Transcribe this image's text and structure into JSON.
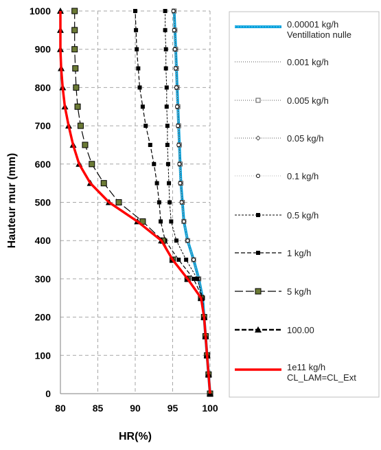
{
  "chart_data": {
    "type": "line",
    "xlabel": "HR(%)",
    "ylabel": "Hauteur mur (mm)",
    "xlim": [
      80,
      100
    ],
    "ylim": [
      0,
      1000
    ],
    "x_ticks": [
      "80",
      "85",
      "90",
      "95",
      "100"
    ],
    "y_ticks": [
      "0",
      "100",
      "200",
      "300",
      "400",
      "500",
      "600",
      "700",
      "800",
      "900",
      "1000"
    ],
    "grid": true,
    "legend_position": "right",
    "series": [
      {
        "name": "0.00001 kg/h",
        "name_line2": "Ventillation nulle",
        "color": "#00a0dc",
        "style": "solid-thick",
        "x": [
          100,
          99.8,
          99.6,
          99.4,
          99.2,
          99.0,
          98.5,
          97.8,
          97.0,
          96.5,
          96.3,
          96.1,
          96.0,
          95.9,
          95.8,
          95.7,
          95.6,
          95.5,
          95.4,
          95.3,
          95.2
        ],
        "y": [
          0,
          50,
          100,
          150,
          200,
          250,
          300,
          350,
          400,
          450,
          500,
          550,
          600,
          650,
          700,
          750,
          800,
          850,
          900,
          950,
          1000
        ]
      },
      {
        "name": "0.001 kg/h",
        "color": "#555555",
        "style": "dotted",
        "x": [
          100,
          99.8,
          99.6,
          99.4,
          99.2,
          99.0,
          98.5,
          97.8,
          97.0,
          96.5,
          96.3,
          96.1,
          96.0,
          95.9,
          95.8,
          95.7,
          95.6,
          95.5,
          95.4,
          95.3,
          95.2
        ],
        "y": [
          0,
          50,
          100,
          150,
          200,
          250,
          300,
          350,
          400,
          450,
          500,
          550,
          600,
          650,
          700,
          750,
          800,
          850,
          900,
          950,
          1000
        ]
      },
      {
        "name": "0.005 kg/h",
        "color": "#555555",
        "style": "dotted-square-open",
        "x": [
          100,
          99.8,
          99.6,
          99.4,
          99.2,
          99.0,
          98.5,
          97.8,
          97.0,
          96.5,
          96.3,
          96.1,
          96.0,
          95.9,
          95.8,
          95.7,
          95.6,
          95.5,
          95.4,
          95.3,
          95.2
        ],
        "y": [
          0,
          50,
          100,
          150,
          200,
          250,
          300,
          350,
          400,
          450,
          500,
          550,
          600,
          650,
          700,
          750,
          800,
          850,
          900,
          950,
          1000
        ]
      },
      {
        "name": "0.05 kg/h",
        "color": "#555555",
        "style": "dotted-diamond",
        "x": [
          100,
          99.8,
          99.6,
          99.4,
          99.2,
          99.0,
          98.5,
          97.8,
          97.0,
          96.5,
          96.3,
          96.1,
          96.0,
          95.9,
          95.8,
          95.7,
          95.6,
          95.5,
          95.4,
          95.3,
          95.2
        ],
        "y": [
          0,
          50,
          100,
          150,
          200,
          250,
          300,
          350,
          400,
          450,
          500,
          550,
          600,
          650,
          700,
          750,
          800,
          850,
          900,
          950,
          1000
        ]
      },
      {
        "name": "0.1 kg/h",
        "color": "#666666",
        "style": "dotted-circle-open",
        "x": [
          100,
          99.8,
          99.6,
          99.4,
          99.2,
          99.0,
          98.5,
          97.8,
          97.0,
          96.5,
          96.2,
          96.0,
          95.9,
          95.8,
          95.7,
          95.6,
          95.5,
          95.4,
          95.3,
          95.2,
          95.1
        ],
        "y": [
          0,
          50,
          100,
          150,
          200,
          250,
          300,
          350,
          400,
          450,
          500,
          550,
          600,
          650,
          700,
          750,
          800,
          850,
          900,
          950,
          1000
        ]
      },
      {
        "name": "0.5 kg/h",
        "color": "#000000",
        "style": "fine-dash-square",
        "x": [
          100,
          99.8,
          99.6,
          99.4,
          99.2,
          99.0,
          98.3,
          96.8,
          95.5,
          94.8,
          94.6,
          94.5,
          94.4,
          94.3,
          94.3,
          94.2,
          94.2,
          94.1,
          94.1,
          94.0,
          94.0
        ],
        "y": [
          0,
          50,
          100,
          150,
          200,
          250,
          300,
          350,
          400,
          450,
          500,
          550,
          600,
          650,
          700,
          750,
          800,
          850,
          900,
          950,
          1000
        ]
      },
      {
        "name": "1 kg/h",
        "color": "#000000",
        "style": "dash-square",
        "x": [
          100,
          99.8,
          99.6,
          99.4,
          99.2,
          99.0,
          97.8,
          95.8,
          94.0,
          93.4,
          93.2,
          92.9,
          92.5,
          92.0,
          91.4,
          91.0,
          90.6,
          90.4,
          90.2,
          90.1,
          90.0
        ],
        "y": [
          0,
          50,
          100,
          150,
          200,
          250,
          300,
          350,
          400,
          450,
          500,
          550,
          600,
          650,
          700,
          750,
          800,
          850,
          900,
          950,
          1000
        ]
      },
      {
        "name": "5  kg/h",
        "color": "#000000",
        "style": "longdash-square-green",
        "x": [
          100,
          99.8,
          99.6,
          99.4,
          99.2,
          98.8,
          97.0,
          95.0,
          93.7,
          91.0,
          87.8,
          85.8,
          84.2,
          83.3,
          82.7,
          82.3,
          82.1,
          82.0,
          81.9,
          81.9,
          81.9
        ],
        "y": [
          0,
          50,
          100,
          150,
          200,
          250,
          300,
          350,
          400,
          450,
          500,
          550,
          600,
          650,
          700,
          750,
          800,
          850,
          900,
          950,
          1000
        ]
      },
      {
        "name": "100.00",
        "color": "#000000",
        "style": "thickdash-triangle",
        "x": [
          100,
          99.8,
          99.6,
          99.4,
          99.2,
          98.8,
          97.0,
          95.0,
          93.5,
          90.3,
          86.5,
          84.0,
          82.5,
          81.7,
          81.1,
          80.6,
          80.3,
          80.1,
          80.0,
          80.0,
          80.0
        ],
        "y": [
          0,
          50,
          100,
          150,
          200,
          250,
          300,
          350,
          400,
          450,
          500,
          550,
          600,
          650,
          700,
          750,
          800,
          850,
          900,
          950,
          1000
        ]
      },
      {
        "name": "1e11 kg/h",
        "name_line2": "CL_LAM=CL_Ext",
        "color": "#ff0000",
        "style": "solid-red",
        "x": [
          100,
          99.8,
          99.6,
          99.4,
          99.2,
          98.8,
          97.0,
          95.0,
          93.5,
          90.3,
          86.5,
          84.0,
          82.5,
          81.7,
          81.1,
          80.6,
          80.3,
          80.1,
          80.0,
          80.0,
          80.0
        ],
        "y": [
          0,
          50,
          100,
          150,
          200,
          250,
          300,
          350,
          400,
          450,
          500,
          550,
          600,
          650,
          700,
          750,
          800,
          850,
          900,
          950,
          1000
        ]
      }
    ]
  }
}
